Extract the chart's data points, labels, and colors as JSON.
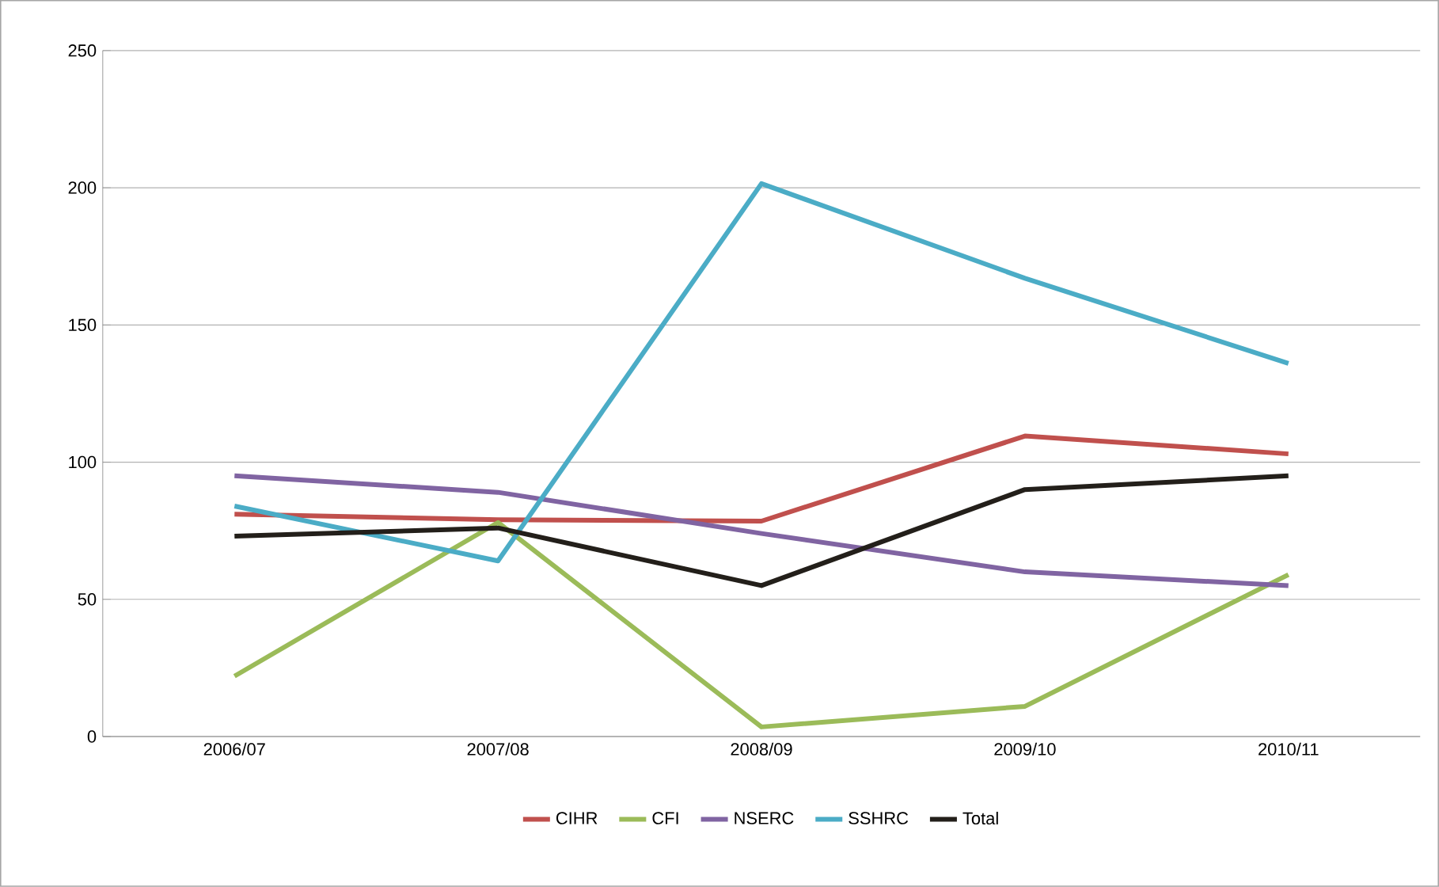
{
  "chart_data": {
    "type": "line",
    "categories": [
      "2006/07",
      "2007/08",
      "2008/09",
      "2009/10",
      "2010/11"
    ],
    "series": [
      {
        "name": "CIHR",
        "color": "#c0504d",
        "values": [
          81,
          79,
          78.5,
          109.5,
          103
        ]
      },
      {
        "name": "CFI",
        "color": "#9bbb59",
        "values": [
          22,
          78,
          3.5,
          11,
          59
        ]
      },
      {
        "name": "NSERC",
        "color": "#8064a2",
        "values": [
          95,
          89,
          74,
          60,
          55
        ]
      },
      {
        "name": "SSHRC",
        "color": "#4bacc6",
        "values": [
          84,
          64,
          201.5,
          167,
          136
        ]
      },
      {
        "name": "Total",
        "color": "#231f1a",
        "values": [
          73,
          76,
          55,
          90,
          95
        ]
      }
    ],
    "ylim": [
      0,
      250
    ],
    "yticks": [
      0,
      50,
      100,
      150,
      200,
      250
    ],
    "grid": "y",
    "legend": "bottom",
    "marker": "none",
    "line_style": "solid"
  }
}
